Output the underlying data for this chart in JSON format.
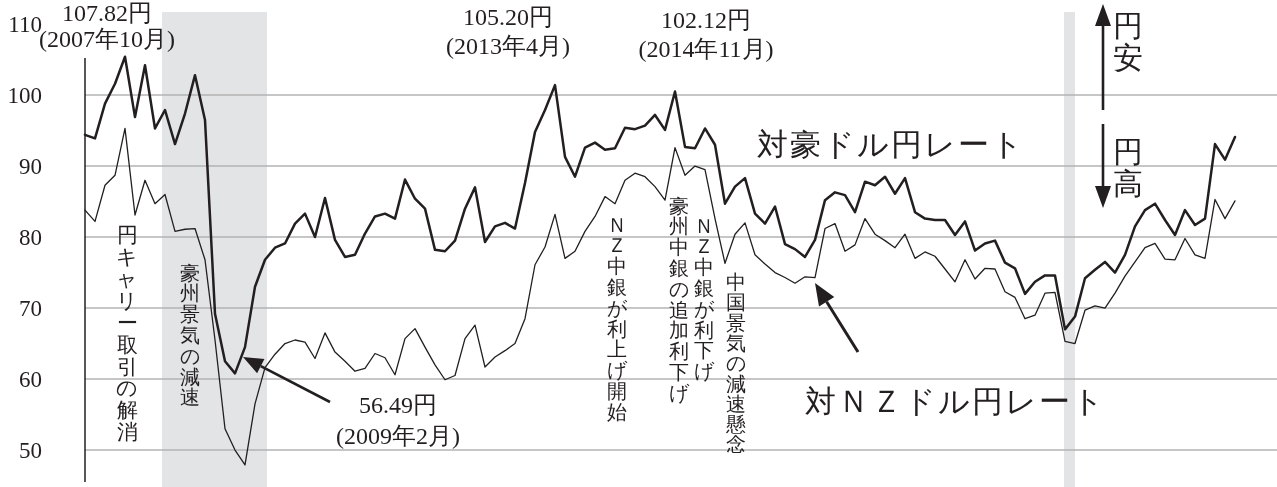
{
  "chart_data": {
    "type": "line",
    "tick_labels": "y",
    "grid": "y",
    "categories": [
      null,
      null,
      null,
      null,
      null,
      null,
      null,
      null,
      null,
      null,
      null,
      null,
      null,
      null,
      null,
      null,
      null,
      null,
      null,
      null,
      null,
      null,
      null,
      null,
      null,
      null,
      null,
      null,
      null,
      null,
      null,
      null,
      null,
      null,
      null,
      null,
      null,
      null,
      null,
      null,
      null,
      null,
      null,
      null,
      null,
      null,
      null,
      null,
      null,
      null,
      null,
      null,
      null,
      null,
      null,
      null,
      null,
      null,
      null,
      null,
      null,
      null,
      null,
      null,
      null,
      null,
      null,
      null,
      null,
      null,
      null,
      null,
      null,
      null,
      null,
      null,
      null,
      null,
      null,
      null,
      null,
      null,
      null,
      null,
      null,
      null,
      null,
      null,
      null,
      null,
      null,
      null,
      null,
      null,
      null,
      null,
      null,
      null,
      null,
      null,
      null,
      null,
      null,
      null,
      null,
      null,
      null,
      null,
      null,
      null,
      null,
      null,
      null,
      null,
      null,
      null
    ],
    "ylim": [
      45.5,
      111.7
    ],
    "yticks": [
      50,
      60,
      70,
      80,
      90,
      100,
      110
    ],
    "series": [
      {
        "name": "対豪ドル円レート",
        "color": "#231f20",
        "values": [
          94.4,
          93.9,
          98.8,
          101.6,
          105.4,
          96.9,
          104.2,
          95.3,
          97.9,
          93.1,
          97.4,
          102.8,
          96.5,
          69.2,
          62.5,
          60.8,
          64.5,
          73.0,
          76.8,
          78.5,
          79.1,
          81.9,
          83.3,
          80.0,
          85.5,
          79.6,
          77.2,
          77.5,
          80.5,
          82.9,
          83.3,
          82.6,
          88.1,
          85.4,
          84.0,
          78.2,
          78.0,
          79.5,
          84.0,
          87.0,
          79.3,
          81.5,
          82.0,
          81.2,
          87.6,
          94.8,
          97.9,
          101.4,
          91.3,
          88.5,
          92.6,
          93.3,
          92.3,
          92.5,
          95.4,
          95.2,
          95.7,
          97.2,
          95.1,
          100.5,
          92.7,
          92.5,
          95.3,
          93.0,
          84.7,
          87.1,
          88.3,
          83.3,
          81.9,
          84.3,
          79.0,
          78.3,
          77.2,
          79.6,
          85.2,
          86.3,
          85.9,
          83.5,
          87.8,
          87.3,
          88.5,
          86.1,
          88.3,
          83.5,
          82.6,
          82.4,
          82.4,
          80.3,
          82.2,
          78.1,
          79.1,
          79.5,
          76.4,
          75.6,
          72.0,
          73.7,
          74.6,
          74.6,
          67.0,
          68.8,
          74.2,
          75.4,
          76.5,
          75.0,
          77.5,
          81.5,
          83.8,
          84.7,
          82.4,
          80.3,
          83.8,
          81.7,
          82.6,
          93.1,
          90.9,
          94.1
        ]
      },
      {
        "name": "対ＮＺドル円レート",
        "color": "#231f20",
        "values": [
          83.8,
          82.2,
          87.3,
          88.7,
          95.3,
          83.1,
          88.0,
          84.7,
          86.0,
          80.8,
          81.1,
          81.2,
          76.8,
          65.5,
          53.0,
          50.0,
          47.9,
          56.5,
          61.6,
          63.5,
          65.0,
          65.5,
          65.2,
          62.9,
          66.5,
          63.8,
          62.5,
          61.1,
          61.5,
          63.6,
          63.0,
          60.6,
          65.7,
          67.1,
          64.5,
          62.0,
          59.9,
          60.5,
          65.7,
          67.6,
          61.7,
          63.1,
          64.0,
          65.0,
          68.5,
          76.1,
          78.6,
          83.2,
          77.0,
          78.0,
          80.8,
          82.9,
          85.7,
          84.7,
          88.0,
          89.0,
          88.5,
          87.1,
          85.2,
          92.6,
          88.7,
          90.0,
          89.5,
          82.6,
          76.3,
          80.4,
          82.0,
          77.5,
          76.2,
          75.0,
          74.3,
          73.5,
          74.4,
          74.3,
          81.2,
          81.9,
          78.0,
          78.9,
          82.6,
          80.4,
          79.5,
          78.5,
          80.4,
          77.0,
          77.9,
          77.3,
          75.5,
          73.7,
          76.8,
          74.1,
          75.6,
          75.5,
          72.3,
          71.5,
          68.5,
          69.0,
          72.1,
          72.2,
          65.3,
          65.0,
          69.7,
          70.3,
          70.0,
          72.1,
          74.5,
          76.5,
          78.5,
          79.1,
          76.9,
          76.8,
          79.8,
          77.5,
          77.0,
          85.3,
          82.6,
          85.1
        ]
      }
    ],
    "annotations": [
      "107.82円\n(2007年10月)",
      "105.20円\n(2013年4月)",
      "102.12円\n(2014年11月)",
      "56.49円\n(2009年2月)",
      "円キャリー取引の解消",
      "豪州景気の減速",
      "ＮＺ中銀が利上げ開始",
      "豪州中銀の追加利下げ",
      "ＮＺ中銀が利下げ",
      "中国景気の減速懸念",
      "円安",
      "円高"
    ]
  }
}
